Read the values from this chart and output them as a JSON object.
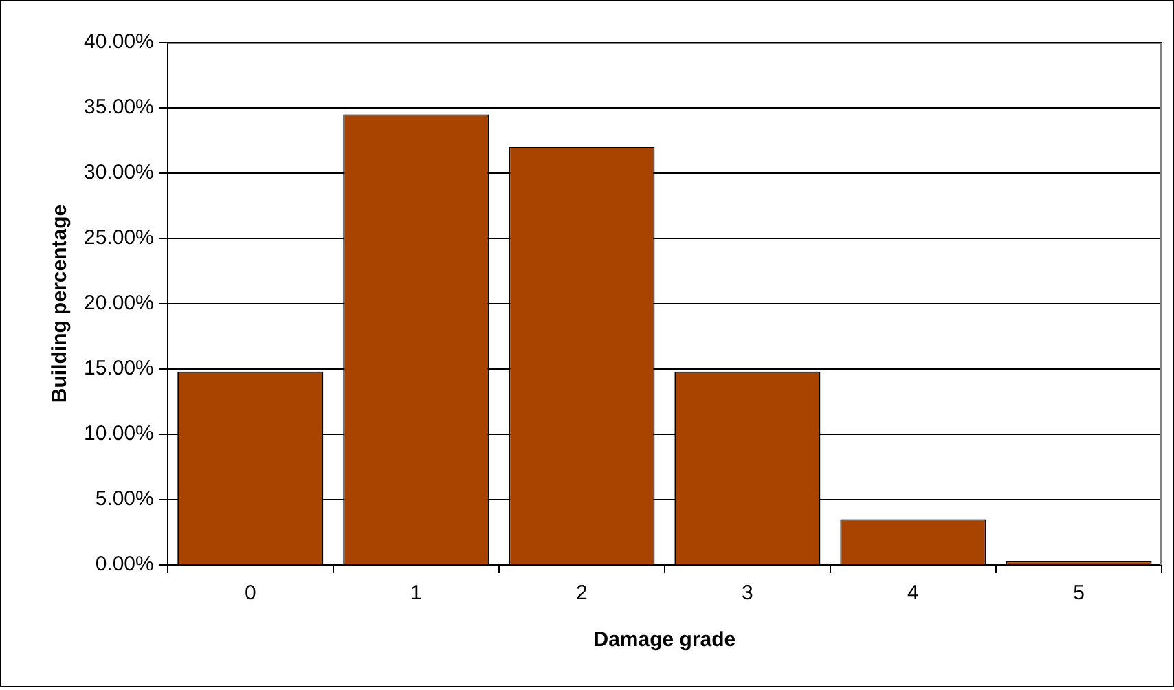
{
  "chart_data": {
    "type": "bar",
    "xlabel": "Damage grade",
    "ylabel": "Building percentage",
    "categories": [
      "0",
      "1",
      "2",
      "3",
      "4",
      "5"
    ],
    "values": [
      14.8,
      34.5,
      32.0,
      14.8,
      3.5,
      0.3
    ],
    "color": "#a94400",
    "ylim": [
      0,
      40
    ],
    "yticks": [
      {
        "value": 0,
        "label": "0.00%"
      },
      {
        "value": 5,
        "label": "5.00%"
      },
      {
        "value": 10,
        "label": "10.00%"
      },
      {
        "value": 15,
        "label": "15.00%"
      },
      {
        "value": 20,
        "label": "20.00%"
      },
      {
        "value": 25,
        "label": "25.00%"
      },
      {
        "value": 30,
        "label": "30.00%"
      },
      {
        "value": 35,
        "label": "35.00%"
      },
      {
        "value": 40,
        "label": "40.00%"
      }
    ],
    "grid": "y",
    "legend": false
  }
}
